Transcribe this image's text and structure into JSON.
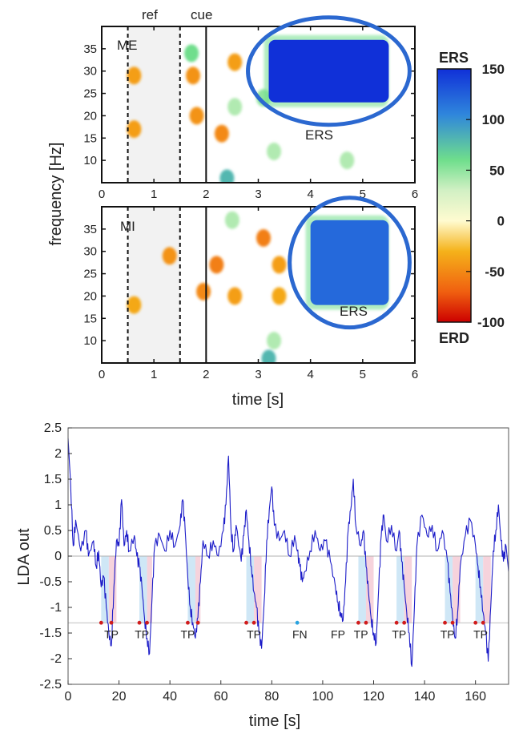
{
  "chart_data": [
    {
      "type": "heatmap",
      "panel_label": "ME",
      "markers": {
        "ref": "ref",
        "cue": "cue"
      },
      "xlabel": "",
      "ylabel": "frequency [Hz]",
      "xlim": [
        0,
        6
      ],
      "ylim": [
        5,
        40
      ],
      "xticks": [
        "0",
        "1",
        "2",
        "3",
        "4",
        "5",
        "6"
      ],
      "yticks": [
        "10",
        "15",
        "20",
        "25",
        "30",
        "35"
      ],
      "dashed_lines_x": [
        0.5,
        1.5
      ],
      "solid_line_x": 2.0,
      "reference_window": [
        0.5,
        1.5
      ],
      "annotation": "ERS",
      "highlight_region": {
        "x": [
          3.2,
          5.5
        ],
        "y": [
          23,
          37
        ],
        "value": 150
      },
      "blobs": [
        {
          "x": 0.62,
          "y": 29,
          "value": -40
        },
        {
          "x": 0.62,
          "y": 17,
          "value": -40
        },
        {
          "x": 1.75,
          "y": 29,
          "value": -45
        },
        {
          "x": 1.82,
          "y": 20,
          "value": -45
        },
        {
          "x": 2.3,
          "y": 16,
          "value": -50
        },
        {
          "x": 2.55,
          "y": 32,
          "value": -40
        },
        {
          "x": 1.72,
          "y": 34,
          "value": 60
        },
        {
          "x": 2.55,
          "y": 22,
          "value": 40
        },
        {
          "x": 3.1,
          "y": 24,
          "value": 50
        },
        {
          "x": 3.3,
          "y": 12,
          "value": 40
        },
        {
          "x": 4.7,
          "y": 10,
          "value": 40
        },
        {
          "x": 2.4,
          "y": 6,
          "value": 80
        }
      ]
    },
    {
      "type": "heatmap",
      "panel_label": "MI",
      "xlabel": "time [s]",
      "ylabel": "frequency [Hz]",
      "xlim": [
        0,
        6
      ],
      "ylim": [
        5,
        40
      ],
      "xticks": [
        "0",
        "1",
        "2",
        "3",
        "4",
        "5",
        "6"
      ],
      "yticks": [
        "10",
        "15",
        "20",
        "25",
        "30",
        "35"
      ],
      "dashed_lines_x": [
        0.5,
        1.5
      ],
      "solid_line_x": 2.0,
      "reference_window": [
        0.5,
        1.5
      ],
      "annotation": "ERS",
      "highlight_region": {
        "x": [
          4.0,
          5.5
        ],
        "y": [
          18,
          37
        ],
        "value": 120
      },
      "blobs": [
        {
          "x": 1.3,
          "y": 29,
          "value": -45
        },
        {
          "x": 0.62,
          "y": 18,
          "value": -35
        },
        {
          "x": 2.2,
          "y": 27,
          "value": -55
        },
        {
          "x": 1.95,
          "y": 21,
          "value": -50
        },
        {
          "x": 2.55,
          "y": 20,
          "value": -40
        },
        {
          "x": 3.1,
          "y": 33,
          "value": -55
        },
        {
          "x": 3.4,
          "y": 27,
          "value": -40
        },
        {
          "x": 3.4,
          "y": 20,
          "value": -35
        },
        {
          "x": 2.5,
          "y": 37,
          "value": 40
        },
        {
          "x": 3.3,
          "y": 10,
          "value": 40
        },
        {
          "x": 3.2,
          "y": 6,
          "value": 80
        }
      ]
    },
    {
      "type": "colorbar",
      "top_label": "ERS",
      "bottom_label": "ERD",
      "ticks": [
        "150",
        "100",
        "50",
        "0",
        "-50",
        "-100"
      ],
      "range": [
        -100,
        150
      ],
      "colors": [
        "#cc0000",
        "#f06010",
        "#f5b21a",
        "#fffbd0",
        "#d2f0c4",
        "#6fde8c",
        "#2f86dc",
        "#1030d8"
      ]
    },
    {
      "type": "line",
      "xlabel": "time [s]",
      "ylabel": "LDA out",
      "xlim": [
        0,
        173
      ],
      "ylim": [
        -2.5,
        2.5
      ],
      "xticks": [
        "0",
        "20",
        "40",
        "60",
        "80",
        "100",
        "120",
        "140",
        "160"
      ],
      "yticks": [
        "2.5",
        "2",
        "1.5",
        "1",
        "0.5",
        "0",
        "-0.5",
        "-1",
        "-1.5",
        "-2",
        "-2.5"
      ],
      "threshold": -1.3,
      "series_color": "#1c1cc8",
      "series": [
        {
          "name": "",
          "points": [
            [
              0,
              2.3
            ],
            [
              1,
              1.4
            ],
            [
              2,
              0.2
            ],
            [
              3,
              0.7
            ],
            [
              5,
              0.1
            ],
            [
              7,
              0.5
            ],
            [
              8,
              0.0
            ],
            [
              10,
              0.3
            ],
            [
              11,
              -0.2
            ],
            [
              12,
              0.1
            ],
            [
              13,
              -0.6
            ],
            [
              14,
              -0.4
            ],
            [
              15,
              -1.0
            ],
            [
              16,
              -1.5
            ],
            [
              17,
              -1.75
            ],
            [
              18,
              -0.6
            ],
            [
              19,
              0.3
            ],
            [
              20,
              0.2
            ],
            [
              21,
              1.1
            ],
            [
              22,
              0.2
            ],
            [
              23,
              0.5
            ],
            [
              24,
              0.1
            ],
            [
              26,
              0.4
            ],
            [
              27,
              0.0
            ],
            [
              28,
              -0.2
            ],
            [
              29,
              -0.6
            ],
            [
              30,
              -1.2
            ],
            [
              31,
              -1.6
            ],
            [
              32,
              -1.9
            ],
            [
              33,
              -0.8
            ],
            [
              34,
              0.2
            ],
            [
              36,
              0.4
            ],
            [
              38,
              0.1
            ],
            [
              40,
              0.5
            ],
            [
              42,
              0.2
            ],
            [
              44,
              0.6
            ],
            [
              45,
              1.1
            ],
            [
              46,
              0.5
            ],
            [
              47,
              -0.4
            ],
            [
              48,
              -1.0
            ],
            [
              49,
              -1.3
            ],
            [
              50,
              -1.6
            ],
            [
              51,
              -1.2
            ],
            [
              52,
              -0.5
            ],
            [
              53,
              0.3
            ],
            [
              55,
              0.0
            ],
            [
              57,
              0.3
            ],
            [
              59,
              0.0
            ],
            [
              61,
              0.5
            ],
            [
              62,
              1.0
            ],
            [
              63,
              1.95
            ],
            [
              64,
              0.5
            ],
            [
              65,
              0.1
            ],
            [
              66,
              0.6
            ],
            [
              68,
              -0.1
            ],
            [
              69,
              0.4
            ],
            [
              70,
              0.9
            ],
            [
              71,
              0.3
            ],
            [
              72,
              -0.2
            ],
            [
              73,
              -0.7
            ],
            [
              74,
              -1.0
            ],
            [
              75,
              -1.5
            ],
            [
              76,
              -1.8
            ],
            [
              77,
              -0.9
            ],
            [
              78,
              0.3
            ],
            [
              79,
              0.9
            ],
            [
              80,
              1.35
            ],
            [
              81,
              0.6
            ],
            [
              83,
              0.3
            ],
            [
              85,
              0.5
            ],
            [
              87,
              0.0
            ],
            [
              89,
              0.4
            ],
            [
              90,
              0.1
            ],
            [
              91,
              -0.2
            ],
            [
              92,
              -0.5
            ],
            [
              93,
              -0.3
            ],
            [
              95,
              0.1
            ],
            [
              97,
              0.5
            ],
            [
              99,
              0.1
            ],
            [
              101,
              0.3
            ],
            [
              103,
              -0.1
            ],
            [
              105,
              -0.6
            ],
            [
              106,
              -0.9
            ],
            [
              107,
              -1.1
            ],
            [
              108,
              -1.25
            ],
            [
              109,
              -0.5
            ],
            [
              110,
              0.5
            ],
            [
              111,
              0.9
            ],
            [
              112,
              1.5
            ],
            [
              113,
              0.6
            ],
            [
              115,
              0.2
            ],
            [
              116,
              0.5
            ],
            [
              117,
              -0.2
            ],
            [
              118,
              -0.7
            ],
            [
              119,
              -1.2
            ],
            [
              120,
              -1.5
            ],
            [
              121,
              -1.7
            ],
            [
              122,
              -0.6
            ],
            [
              123,
              0.4
            ],
            [
              124,
              0.8
            ],
            [
              125,
              0.3
            ],
            [
              127,
              0.6
            ],
            [
              129,
              0.1
            ],
            [
              130,
              0.5
            ],
            [
              131,
              -0.1
            ],
            [
              132,
              -0.6
            ],
            [
              133,
              -1.1
            ],
            [
              134,
              -1.5
            ],
            [
              135,
              -2.15
            ],
            [
              136,
              -1.0
            ],
            [
              137,
              0.2
            ],
            [
              139,
              0.8
            ],
            [
              141,
              0.4
            ],
            [
              143,
              0.6
            ],
            [
              145,
              0.1
            ],
            [
              147,
              0.5
            ],
            [
              149,
              -0.1
            ],
            [
              150,
              -0.7
            ],
            [
              151,
              -1.2
            ],
            [
              152,
              -1.6
            ],
            [
              153,
              -1.1
            ],
            [
              154,
              -0.2
            ],
            [
              156,
              0.4
            ],
            [
              158,
              0.7
            ],
            [
              160,
              0.2
            ],
            [
              161,
              -0.2
            ],
            [
              162,
              -0.6
            ],
            [
              163,
              -1.1
            ],
            [
              164,
              -1.5
            ],
            [
              165,
              -2.05
            ],
            [
              166,
              -1.0
            ],
            [
              167,
              0.1
            ],
            [
              168,
              0.5
            ],
            [
              169,
              1.0
            ],
            [
              170,
              0.3
            ],
            [
              171,
              -0.1
            ],
            [
              172,
              0.2
            ],
            [
              173,
              -0.3
            ]
          ]
        }
      ],
      "events": [
        {
          "label": "TP",
          "x": 17,
          "marks": [
            13,
            17
          ],
          "shade": [
            [
              13,
              16
            ],
            [
              16,
              19
            ]
          ]
        },
        {
          "label": "TP",
          "x": 29,
          "marks": [
            28,
            31
          ],
          "shade": [
            [
              28,
              31
            ],
            [
              31,
              33
            ]
          ]
        },
        {
          "label": "TP",
          "x": 47,
          "marks": [
            47,
            51
          ],
          "shade": [
            [
              47,
              50
            ],
            [
              50,
              52
            ]
          ]
        },
        {
          "label": "TP",
          "x": 73,
          "marks": [
            70,
            73
          ],
          "shade": [
            [
              70,
              73
            ],
            [
              73,
              76
            ]
          ]
        },
        {
          "label": "FN",
          "x": 91,
          "marks": [
            90
          ],
          "shade": []
        },
        {
          "label": "FP",
          "x": 106,
          "marks": [],
          "shade": []
        },
        {
          "label": "TP",
          "x": 115,
          "marks": [
            114,
            117
          ],
          "shade": [
            [
              114,
              117
            ],
            [
              117,
              120
            ]
          ]
        },
        {
          "label": "TP",
          "x": 130,
          "marks": [
            129,
            132
          ],
          "shade": [
            [
              129,
              132
            ],
            [
              132,
              135
            ]
          ]
        },
        {
          "label": "TP",
          "x": 149,
          "marks": [
            148,
            151
          ],
          "shade": [
            [
              148,
              151
            ],
            [
              151,
              154
            ]
          ]
        },
        {
          "label": "TP",
          "x": 162,
          "marks": [
            160,
            163
          ],
          "shade": [
            [
              160,
              163
            ],
            [
              163,
              166
            ]
          ]
        }
      ]
    }
  ]
}
